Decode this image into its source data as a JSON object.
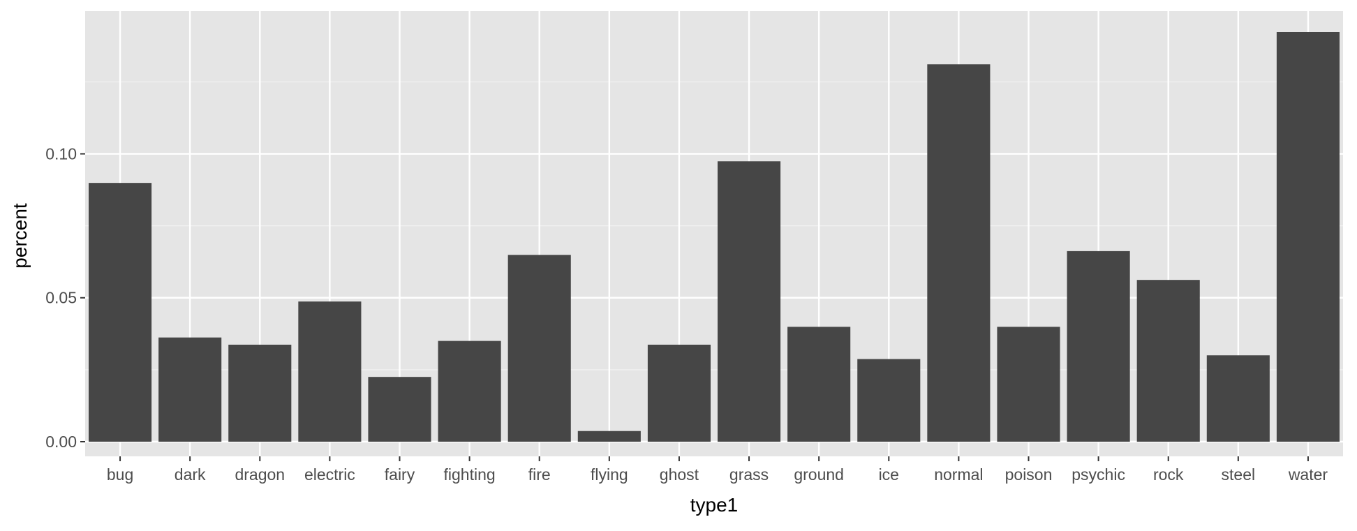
{
  "chart_data": {
    "type": "bar",
    "title": "",
    "xlabel": "type1",
    "ylabel": "percent",
    "categories": [
      "bug",
      "dark",
      "dragon",
      "electric",
      "fairy",
      "fighting",
      "fire",
      "flying",
      "ghost",
      "grass",
      "ground",
      "ice",
      "normal",
      "poison",
      "psychic",
      "rock",
      "steel",
      "water"
    ],
    "values": [
      0.0899,
      0.0362,
      0.0337,
      0.0487,
      0.0225,
      0.035,
      0.0649,
      0.0037,
      0.0337,
      0.0974,
      0.0399,
      0.0287,
      0.1311,
      0.0399,
      0.0662,
      0.0562,
      0.03,
      0.1423
    ],
    "ylim": [
      0,
      0.1423
    ],
    "yticks": [
      0,
      0.05,
      0.1
    ],
    "ytick_labels": [
      "0.00",
      "0.05",
      "0.10"
    ],
    "grid": true,
    "legend": "none",
    "colors": {
      "panel_background": "#e5e5e5",
      "grid_major": "#ffffff",
      "grid_minor": "#f2f2f2",
      "bar_fill": "#464646",
      "tick_text": "#4d4d4d",
      "axis_title": "#000000"
    }
  }
}
